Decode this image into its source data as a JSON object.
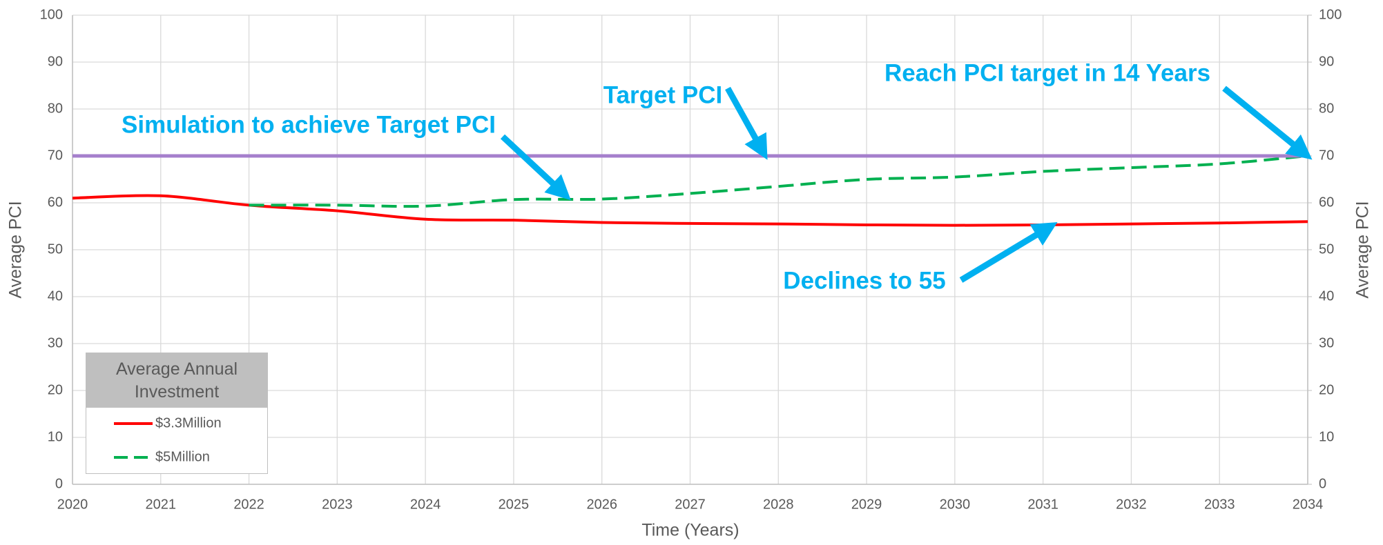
{
  "chart_data": {
    "type": "line",
    "xlabel": "Time (Years)",
    "ylabel": "Average PCI",
    "y2label": "Average PCI",
    "x": [
      2020,
      2021,
      2022,
      2023,
      2024,
      2025,
      2026,
      2027,
      2028,
      2029,
      2030,
      2031,
      2032,
      2033,
      2034
    ],
    "series": [
      {
        "name": "$3.3Million",
        "color": "#ff0000",
        "dash": false,
        "values": [
          61,
          61.5,
          59.5,
          58.3,
          56.5,
          56.3,
          55.8,
          55.6,
          55.5,
          55.3,
          55.2,
          55.3,
          55.5,
          55.7,
          56
        ]
      },
      {
        "name": "$5Million",
        "color": "#00b050",
        "dash": true,
        "values": [
          null,
          null,
          59.5,
          59.5,
          59.3,
          60.7,
          60.8,
          62,
          63.5,
          65,
          65.5,
          66.7,
          67.5,
          68.3,
          70
        ]
      }
    ],
    "target_line": {
      "value": 70,
      "color": "#a57fcc"
    },
    "legend_title": "Average Annual Investment",
    "annotations": [
      "Simulation to achieve Target PCI",
      "Target PCI",
      "Reach PCI target in 14 Years",
      "Declines to 55"
    ],
    "xlim": [
      2020,
      2034
    ],
    "xticks": [
      2020,
      2021,
      2022,
      2023,
      2024,
      2025,
      2026,
      2027,
      2028,
      2029,
      2030,
      2031,
      2032,
      2033,
      2034
    ],
    "ylim": [
      0,
      100
    ],
    "yticks": [
      0,
      10,
      20,
      30,
      40,
      50,
      60,
      70,
      80,
      90,
      100
    ],
    "y2lim": [
      0,
      100
    ],
    "y2ticks": [
      0,
      10,
      20,
      30,
      40,
      50,
      60,
      70,
      80,
      90,
      100
    ],
    "grid": true
  }
}
